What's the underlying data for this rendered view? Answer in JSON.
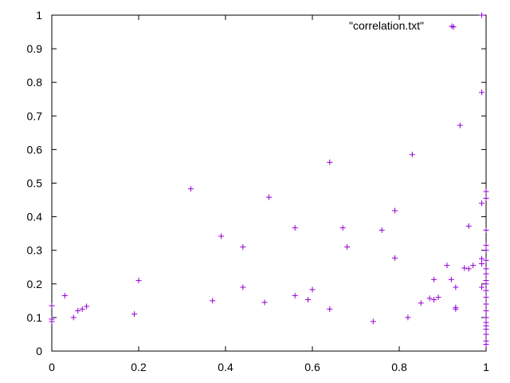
{
  "chart_data": {
    "type": "scatter",
    "title": "",
    "xlabel": "",
    "ylabel": "",
    "xlim": [
      0,
      1
    ],
    "ylim": [
      0,
      1
    ],
    "xticks": [
      "0",
      "0.2",
      "0.4",
      "0.6",
      "0.8",
      "1"
    ],
    "yticks": [
      "0",
      "0.1",
      "0.2",
      "0.3",
      "0.4",
      "0.5",
      "0.6",
      "0.7",
      "0.8",
      "0.9",
      "1"
    ],
    "grid": false,
    "legend_position": "top-right",
    "series": [
      {
        "name": "\"correlation.txt\"",
        "color": "#9400d3",
        "marker": "plus",
        "points": [
          [
            0.0,
            0.135
          ],
          [
            0.0,
            0.095
          ],
          [
            0.0,
            0.088
          ],
          [
            0.03,
            0.165
          ],
          [
            0.05,
            0.1
          ],
          [
            0.06,
            0.12
          ],
          [
            0.07,
            0.125
          ],
          [
            0.08,
            0.133
          ],
          [
            0.19,
            0.11
          ],
          [
            0.2,
            0.21
          ],
          [
            0.32,
            0.483
          ],
          [
            0.37,
            0.15
          ],
          [
            0.39,
            0.342
          ],
          [
            0.44,
            0.31
          ],
          [
            0.44,
            0.19
          ],
          [
            0.49,
            0.145
          ],
          [
            0.5,
            0.458
          ],
          [
            0.56,
            0.367
          ],
          [
            0.56,
            0.165
          ],
          [
            0.59,
            0.153
          ],
          [
            0.6,
            0.183
          ],
          [
            0.64,
            0.562
          ],
          [
            0.64,
            0.125
          ],
          [
            0.67,
            0.367
          ],
          [
            0.68,
            0.31
          ],
          [
            0.74,
            0.088
          ],
          [
            0.76,
            0.36
          ],
          [
            0.79,
            0.418
          ],
          [
            0.79,
            0.277
          ],
          [
            0.82,
            0.1
          ],
          [
            0.83,
            0.585
          ],
          [
            0.85,
            0.143
          ],
          [
            0.87,
            0.157
          ],
          [
            0.88,
            0.153
          ],
          [
            0.88,
            0.213
          ],
          [
            0.89,
            0.16
          ],
          [
            0.91,
            0.255
          ],
          [
            0.92,
            0.213
          ],
          [
            0.925,
            0.965
          ],
          [
            0.93,
            0.19
          ],
          [
            0.93,
            0.13
          ],
          [
            0.93,
            0.125
          ],
          [
            0.94,
            0.672
          ],
          [
            0.95,
            0.247
          ],
          [
            0.96,
            0.245
          ],
          [
            0.96,
            0.372
          ],
          [
            0.97,
            0.255
          ],
          [
            0.99,
            1.0
          ],
          [
            0.99,
            0.77
          ],
          [
            0.99,
            0.44
          ],
          [
            0.99,
            0.275
          ],
          [
            0.99,
            0.26
          ],
          [
            0.99,
            0.19
          ],
          [
            1.0,
            0.475
          ],
          [
            1.0,
            0.455
          ],
          [
            1.0,
            0.36
          ],
          [
            1.0,
            0.315
          ],
          [
            1.0,
            0.3
          ],
          [
            1.0,
            0.27
          ],
          [
            1.0,
            0.245
          ],
          [
            1.0,
            0.23
          ],
          [
            1.0,
            0.21
          ],
          [
            1.0,
            0.2
          ],
          [
            1.0,
            0.18
          ],
          [
            1.0,
            0.16
          ],
          [
            1.0,
            0.14
          ],
          [
            1.0,
            0.12
          ],
          [
            1.0,
            0.1
          ],
          [
            1.0,
            0.085
          ],
          [
            1.0,
            0.075
          ],
          [
            1.0,
            0.065
          ],
          [
            1.0,
            0.05
          ],
          [
            1.0,
            0.03
          ],
          [
            1.0,
            0.02
          ]
        ]
      }
    ]
  }
}
